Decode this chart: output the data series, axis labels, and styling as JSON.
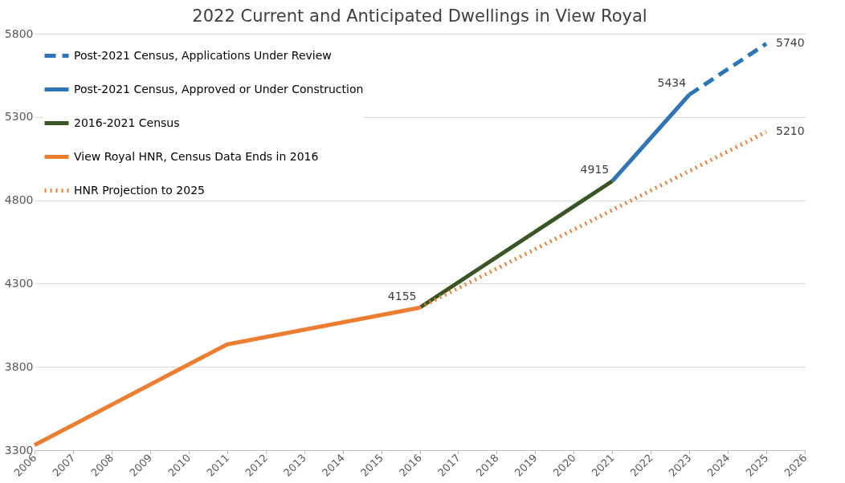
{
  "chart_data": {
    "type": "line",
    "title": "2022 Current and Anticipated Dwellings in View Royal",
    "xlim": [
      2006,
      2026
    ],
    "xticks": [
      2006,
      2007,
      2008,
      2009,
      2010,
      2011,
      2012,
      2013,
      2014,
      2015,
      2016,
      2017,
      2018,
      2019,
      2020,
      2021,
      2022,
      2023,
      2024,
      2025,
      2026
    ],
    "ylim": [
      3300,
      5800
    ],
    "yticks": [
      3300,
      3800,
      4300,
      4800,
      5300,
      5800
    ],
    "grid": "y",
    "legend": "top left",
    "series": [
      {
        "name": "Post-2021 Census, Applications Under Review",
        "color": "#2e75b6",
        "line_style": "dashed",
        "x": [
          2023,
          2025
        ],
        "values": [
          5434,
          5740
        ],
        "value_labels": [
          null,
          "5740"
        ]
      },
      {
        "name": "Post-2021 Census, Approved or Under Construction",
        "color": "#2e75b6",
        "line_style": "solid",
        "x": [
          2021,
          2023
        ],
        "values": [
          4915,
          5434
        ],
        "value_labels": [
          null,
          "5434"
        ]
      },
      {
        "name": "2016-2021 Census",
        "color": "#375623",
        "line_style": "solid",
        "x": [
          2016,
          2021
        ],
        "values": [
          4155,
          4915
        ],
        "value_labels": [
          null,
          "4915"
        ]
      },
      {
        "name": "View Royal HNR, Census Data Ends in 2016",
        "color": "#ed7d31",
        "line_style": "solid",
        "x": [
          2006,
          2011,
          2016
        ],
        "values": [
          3330,
          3935,
          4155
        ],
        "value_labels": [
          null,
          null,
          "4155"
        ]
      },
      {
        "name": "HNR Projection to 2025",
        "color": "#ed7d31",
        "line_style": "dotted",
        "x": [
          2016,
          2025
        ],
        "values": [
          4155,
          5210
        ],
        "value_labels": [
          null,
          "5210"
        ]
      }
    ]
  }
}
